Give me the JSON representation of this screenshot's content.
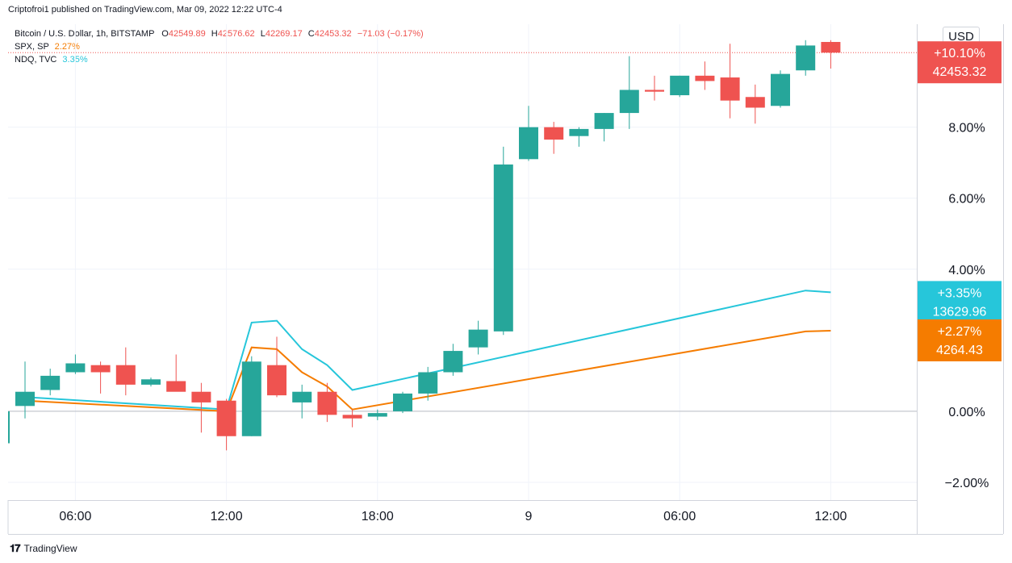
{
  "header": {
    "published": "Criptofroi1 published on TradingView.com, Mar 09, 2022 12:22 UTC-4"
  },
  "legend": {
    "main_label": "Bitcoin / U.S. Dollar, 1h, BITSTAMP",
    "ohlc": [
      {
        "k": "O",
        "v": "42549.89"
      },
      {
        "k": "H",
        "v": "42576.62"
      },
      {
        "k": "L",
        "v": "42269.17"
      },
      {
        "k": "C",
        "v": "42453.32"
      }
    ],
    "change": "−71.03 (−0.17%)",
    "spx_label": "SPX, SP",
    "spx_value": "2.27%",
    "ndq_label": "NDQ, TVC",
    "ndq_value": "3.35%"
  },
  "currency_button": "USD",
  "footer": {
    "logo": "TradingView"
  },
  "colors": {
    "up": "#26a69a",
    "down": "#ef5350",
    "ndq": "#26c6da",
    "spx": "#f57c00",
    "grid": "#f0f3fa",
    "axis_text": "#131722"
  },
  "chart_data": {
    "type": "candlestick",
    "price_scale": "percent",
    "ylim": [
      -2.5,
      10.9
    ],
    "yticks": [
      {
        "value": 8,
        "label": "8.00%"
      },
      {
        "value": 6,
        "label": "6.00%"
      },
      {
        "value": 4,
        "label": "4.00%"
      },
      {
        "value": 0,
        "label": "0.00%"
      },
      {
        "value": -2,
        "label": "−2.00%"
      }
    ],
    "xticks": [
      {
        "bar": 2.5,
        "label": "06:00"
      },
      {
        "bar": 8.5,
        "label": "12:00"
      },
      {
        "bar": 14.5,
        "label": "18:00"
      },
      {
        "bar": 20.5,
        "label": "9"
      },
      {
        "bar": 26.5,
        "label": "06:00"
      },
      {
        "bar": 32.5,
        "label": "12:00"
      }
    ],
    "candles": [
      {
        "o": 0.15,
        "h": 1.4,
        "l": -0.2,
        "c": 0.55
      },
      {
        "o": 0.6,
        "h": 1.2,
        "l": 0.45,
        "c": 1.0
      },
      {
        "o": 1.1,
        "h": 1.6,
        "l": 1.05,
        "c": 1.35
      },
      {
        "o": 1.3,
        "h": 1.4,
        "l": 0.5,
        "c": 1.1
      },
      {
        "o": 1.3,
        "h": 1.8,
        "l": 0.45,
        "c": 0.75
      },
      {
        "o": 0.75,
        "h": 0.95,
        "l": 0.7,
        "c": 0.9
      },
      {
        "o": 0.85,
        "h": 1.6,
        "l": 0.6,
        "c": 0.55
      },
      {
        "o": 0.55,
        "h": 0.8,
        "l": -0.6,
        "c": 0.25
      },
      {
        "o": 0.3,
        "h": 0.35,
        "l": -1.1,
        "c": -0.7
      },
      {
        "o": -0.7,
        "h": 1.55,
        "l": -0.7,
        "c": 1.4
      },
      {
        "o": 1.3,
        "h": 2.1,
        "l": 0.4,
        "c": 0.45
      },
      {
        "o": 0.25,
        "h": 0.75,
        "l": -0.2,
        "c": 0.55
      },
      {
        "o": 0.55,
        "h": 0.8,
        "l": -0.3,
        "c": -0.1
      },
      {
        "o": -0.1,
        "h": 0.05,
        "l": -0.45,
        "c": -0.2
      },
      {
        "o": -0.15,
        "h": 0.05,
        "l": -0.25,
        "c": -0.05
      },
      {
        "o": 0.0,
        "h": 0.55,
        "l": -0.05,
        "c": 0.5
      },
      {
        "o": 0.5,
        "h": 1.25,
        "l": 0.3,
        "c": 1.1
      },
      {
        "o": 1.1,
        "h": 1.9,
        "l": 1.0,
        "c": 1.7
      },
      {
        "o": 1.8,
        "h": 2.55,
        "l": 1.6,
        "c": 2.3
      },
      {
        "o": 2.25,
        "h": 7.45,
        "l": 2.15,
        "c": 6.95
      },
      {
        "o": 7.1,
        "h": 8.6,
        "l": 7.05,
        "c": 8.0
      },
      {
        "o": 8.0,
        "h": 8.15,
        "l": 7.25,
        "c": 7.65
      },
      {
        "o": 7.75,
        "h": 8.0,
        "l": 7.45,
        "c": 7.95
      },
      {
        "o": 7.95,
        "h": 8.4,
        "l": 7.6,
        "c": 8.4
      },
      {
        "o": 8.4,
        "h": 10.0,
        "l": 7.95,
        "c": 9.05
      },
      {
        "o": 9.05,
        "h": 9.45,
        "l": 8.75,
        "c": 9.0
      },
      {
        "o": 8.9,
        "h": 9.45,
        "l": 8.85,
        "c": 9.45
      },
      {
        "o": 9.45,
        "h": 9.85,
        "l": 9.05,
        "c": 9.3
      },
      {
        "o": 9.4,
        "h": 10.35,
        "l": 8.25,
        "c": 8.75
      },
      {
        "o": 8.85,
        "h": 9.2,
        "l": 8.1,
        "c": 8.55
      },
      {
        "o": 8.6,
        "h": 9.6,
        "l": 8.55,
        "c": 9.5
      },
      {
        "o": 9.6,
        "h": 10.45,
        "l": 9.45,
        "c": 10.3
      },
      {
        "o": 10.4,
        "h": 10.45,
        "l": 9.65,
        "c": 10.1
      }
    ],
    "series": [
      {
        "name": "NDQ, TVC",
        "color": "#26c6da",
        "points": [
          [
            0,
            0.4
          ],
          [
            8,
            0.05
          ],
          [
            9,
            2.5
          ],
          [
            10,
            2.55
          ],
          [
            11,
            1.75
          ],
          [
            12,
            1.3
          ],
          [
            13,
            0.6
          ],
          [
            31,
            3.4
          ],
          [
            32,
            3.35
          ]
        ]
      },
      {
        "name": "SPX, SP",
        "color": "#f57c00",
        "points": [
          [
            0,
            0.3
          ],
          [
            8,
            0.0
          ],
          [
            9,
            1.8
          ],
          [
            10,
            1.75
          ],
          [
            11,
            1.1
          ],
          [
            12,
            0.7
          ],
          [
            13,
            0.05
          ],
          [
            31,
            2.25
          ],
          [
            32,
            2.27
          ]
        ]
      }
    ],
    "last_price_line": 10.1,
    "badges": [
      {
        "value": 10.1,
        "line1": "+10.10%",
        "line2": "42453.32",
        "color": "#ef5350"
      },
      {
        "value": 3.35,
        "line1": "+3.35%",
        "line2": "13629.96",
        "color": "#26c6da"
      },
      {
        "value": 2.27,
        "line1": "+2.27%",
        "line2": "4264.43",
        "color": "#f57c00"
      }
    ]
  }
}
